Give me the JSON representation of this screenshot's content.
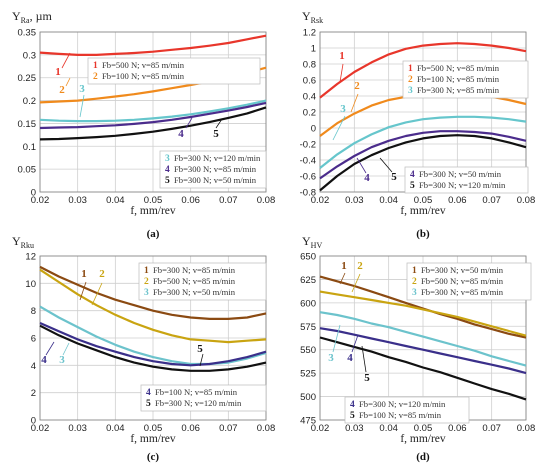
{
  "figure": {
    "panels": [
      {
        "id": "a",
        "label": "(a)",
        "title_main": "Y",
        "title_sub": "Ra",
        "title_suffix": ", µm"
      },
      {
        "id": "b",
        "label": "(b)",
        "title_main": "Y",
        "title_sub": "Rsk",
        "title_suffix": ""
      },
      {
        "id": "c",
        "label": "(c)",
        "title_main": "Y",
        "title_sub": "Rku",
        "title_suffix": ""
      },
      {
        "id": "d",
        "label": "(d)",
        "title_main": "Y",
        "title_sub": "HV",
        "title_suffix": ""
      }
    ]
  },
  "chart_data": [
    {
      "type": "line",
      "title": "YRa, µm",
      "xlabel": "f, mm/rev",
      "ylabel": "YRa, µm",
      "xlim": [
        0.02,
        0.08
      ],
      "ylim": [
        0,
        0.35
      ],
      "xticks": [
        "0.02",
        "0.03",
        "0.04",
        "0.05",
        "0.06",
        "0.07",
        "0.08"
      ],
      "yticks": [
        "0",
        "0.05",
        "0.1",
        "0.15",
        "0.2",
        "0.25",
        "0.3",
        "0.35"
      ],
      "grid": true,
      "legend_placement": "mid-right and bottom-right",
      "x": [
        0.02,
        0.025,
        0.03,
        0.035,
        0.04,
        0.045,
        0.05,
        0.055,
        0.06,
        0.065,
        0.07,
        0.075,
        0.08
      ],
      "series": [
        {
          "name": "Fb=500 N; v=85 m/min",
          "number": "1",
          "color": "#e8362b",
          "values": [
            0.305,
            0.302,
            0.3,
            0.3,
            0.302,
            0.304,
            0.307,
            0.311,
            0.315,
            0.32,
            0.326,
            0.334,
            0.342
          ]
        },
        {
          "name": "Fb=100 N; v=85 m/min",
          "number": "2",
          "color": "#f08a1c",
          "values": [
            0.196,
            0.198,
            0.2,
            0.204,
            0.209,
            0.214,
            0.22,
            0.227,
            0.234,
            0.242,
            0.251,
            0.261,
            0.272
          ]
        },
        {
          "name": "Fb=300 N; v=120 m/min",
          "number": "3",
          "color": "#66c6cc",
          "values": [
            0.158,
            0.156,
            0.155,
            0.155,
            0.156,
            0.158,
            0.161,
            0.165,
            0.17,
            0.176,
            0.183,
            0.191,
            0.2
          ]
        },
        {
          "name": "Fb=300 N; v=85 m/min",
          "number": "4",
          "color": "#4b2c8c",
          "values": [
            0.14,
            0.141,
            0.142,
            0.144,
            0.146,
            0.149,
            0.153,
            0.158,
            0.164,
            0.171,
            0.178,
            0.186,
            0.195
          ]
        },
        {
          "name": "Fb=300 N; v=50 m/min",
          "number": "5",
          "color": "#111111",
          "values": [
            0.115,
            0.116,
            0.118,
            0.12,
            0.123,
            0.127,
            0.132,
            0.138,
            0.145,
            0.153,
            0.162,
            0.172,
            0.185
          ]
        }
      ]
    },
    {
      "type": "line",
      "title": "YRsk",
      "xlabel": "f, mm/rev",
      "ylabel": "YRsk",
      "xlim": [
        0.02,
        0.08
      ],
      "ylim": [
        -0.8,
        1.2
      ],
      "xticks": [
        "0.02",
        "0.03",
        "0.04",
        "0.05",
        "0.06",
        "0.07",
        "0.08"
      ],
      "yticks": [
        "-0.8",
        "-0.6",
        "-0.4",
        "-0.2",
        "0",
        "0.2",
        "0.4",
        "0.6",
        "0.8",
        "1",
        "1.2"
      ],
      "grid": true,
      "legend_placement": "mid-right and bottom-right",
      "x": [
        0.02,
        0.025,
        0.03,
        0.035,
        0.04,
        0.045,
        0.05,
        0.055,
        0.06,
        0.065,
        0.07,
        0.075,
        0.08
      ],
      "series": [
        {
          "name": "Fb=500 N; v=85 m/min",
          "number": "1",
          "color": "#e8362b",
          "values": [
            0.38,
            0.55,
            0.7,
            0.82,
            0.92,
            0.99,
            1.03,
            1.05,
            1.06,
            1.05,
            1.03,
            1.0,
            0.96
          ]
        },
        {
          "name": "Fb=100 N; v=85 m/min",
          "number": "2",
          "color": "#f08a1c",
          "values": [
            -0.1,
            0.06,
            0.18,
            0.28,
            0.35,
            0.39,
            0.42,
            0.43,
            0.43,
            0.42,
            0.39,
            0.35,
            0.3
          ]
        },
        {
          "name": "Fb=300 N; v=85 m/min",
          "number": "3",
          "color": "#66c6cc",
          "values": [
            -0.5,
            -0.33,
            -0.19,
            -0.08,
            0.01,
            0.07,
            0.11,
            0.13,
            0.14,
            0.14,
            0.13,
            0.11,
            0.08
          ]
        },
        {
          "name": "Fb=300 N; v=50 m/min",
          "number": "4",
          "color": "#4b2c8c",
          "values": [
            -0.63,
            -0.48,
            -0.35,
            -0.24,
            -0.16,
            -0.1,
            -0.06,
            -0.04,
            -0.04,
            -0.05,
            -0.07,
            -0.11,
            -0.16
          ]
        },
        {
          "name": "Fb=300 N; v=120 m/min",
          "number": "5",
          "color": "#111111",
          "values": [
            -0.78,
            -0.6,
            -0.45,
            -0.34,
            -0.25,
            -0.18,
            -0.13,
            -0.1,
            -0.09,
            -0.1,
            -0.13,
            -0.18,
            -0.24
          ]
        }
      ]
    },
    {
      "type": "line",
      "title": "YRku",
      "xlabel": "f, mm/rev",
      "ylabel": "YRku",
      "xlim": [
        0.02,
        0.08
      ],
      "ylim": [
        0,
        12
      ],
      "xticks": [
        "0.02",
        "0.03",
        "0.04",
        "0.05",
        "0.06",
        "0.07",
        "0.08"
      ],
      "yticks": [
        "0",
        "2",
        "4",
        "6",
        "8",
        "10",
        "12"
      ],
      "grid": true,
      "legend_placement": "top-right and bottom-right",
      "x": [
        0.02,
        0.025,
        0.03,
        0.035,
        0.04,
        0.045,
        0.05,
        0.055,
        0.06,
        0.065,
        0.07,
        0.075,
        0.08
      ],
      "series": [
        {
          "name": "Fb=300 N; v=85 m/min",
          "number": "1",
          "color": "#8b4a12",
          "values": [
            11.2,
            10.5,
            9.9,
            9.3,
            8.8,
            8.4,
            8.0,
            7.7,
            7.5,
            7.4,
            7.4,
            7.5,
            7.8
          ]
        },
        {
          "name": "Fb=500 N; v=85 m/min",
          "number": "2",
          "color": "#c9a411",
          "values": [
            11.0,
            10.1,
            9.2,
            8.4,
            7.7,
            7.1,
            6.6,
            6.2,
            5.9,
            5.8,
            5.7,
            5.8,
            5.9
          ]
        },
        {
          "name": "Fb=300 N; v=50 m/min",
          "number": "3",
          "color": "#6cc3cc",
          "values": [
            8.3,
            7.5,
            6.8,
            6.1,
            5.5,
            5.0,
            4.6,
            4.3,
            4.1,
            4.1,
            4.2,
            4.5,
            4.9
          ]
        },
        {
          "name": "Fb=100 N; v=85 m/min",
          "number": "4",
          "color": "#3a2f8a",
          "values": [
            7.1,
            6.5,
            5.9,
            5.4,
            5.0,
            4.6,
            4.3,
            4.1,
            4.0,
            4.1,
            4.3,
            4.6,
            5.0
          ]
        },
        {
          "name": "Fb=300 N; v=120 m/min",
          "number": "5",
          "color": "#111111",
          "values": [
            6.9,
            6.2,
            5.6,
            5.1,
            4.6,
            4.2,
            3.9,
            3.7,
            3.6,
            3.6,
            3.7,
            3.9,
            4.2
          ]
        }
      ]
    },
    {
      "type": "line",
      "title": "YHV",
      "xlabel": "f, mm/rev",
      "ylabel": "YHV",
      "xlim": [
        0.02,
        0.08
      ],
      "ylim": [
        475,
        650
      ],
      "xticks": [
        "0.02",
        "0.03",
        "0.04",
        "0.05",
        "0.06",
        "0.07",
        "0.08"
      ],
      "yticks": [
        "475",
        "500",
        "525",
        "550",
        "575",
        "600",
        "625",
        "650"
      ],
      "grid": true,
      "legend_placement": "top-right and bottom-center",
      "x": [
        0.02,
        0.025,
        0.03,
        0.035,
        0.04,
        0.045,
        0.05,
        0.055,
        0.06,
        0.065,
        0.07,
        0.075,
        0.08
      ],
      "series": [
        {
          "name": "Fb=300 N; v=50 m/min",
          "number": "1",
          "color": "#8b4a12",
          "values": [
            628,
            623,
            618,
            612,
            606,
            600,
            594,
            588,
            583,
            577,
            572,
            567,
            563
          ]
        },
        {
          "name": "Fb=500 N; v=85 m/min",
          "number": "2",
          "color": "#c9a411",
          "values": [
            612,
            609,
            606,
            603,
            600,
            597,
            593,
            589,
            585,
            580,
            575,
            570,
            565
          ]
        },
        {
          "name": "Fb=300 N; v=85 m/min",
          "number": "3",
          "color": "#6cc3cc",
          "values": [
            590,
            587,
            583,
            578,
            574,
            569,
            564,
            559,
            554,
            549,
            543,
            538,
            533
          ]
        },
        {
          "name": "Fb=300 N; v=120 m/min",
          "number": "4",
          "color": "#3a2f8a",
          "values": [
            573,
            570,
            566,
            562,
            558,
            554,
            550,
            546,
            542,
            538,
            534,
            530,
            525
          ]
        },
        {
          "name": "Fb=100 N; v=85 m/min",
          "number": "5",
          "color": "#111111",
          "values": [
            563,
            558,
            553,
            548,
            542,
            537,
            531,
            526,
            520,
            514,
            508,
            503,
            497
          ]
        }
      ]
    }
  ]
}
